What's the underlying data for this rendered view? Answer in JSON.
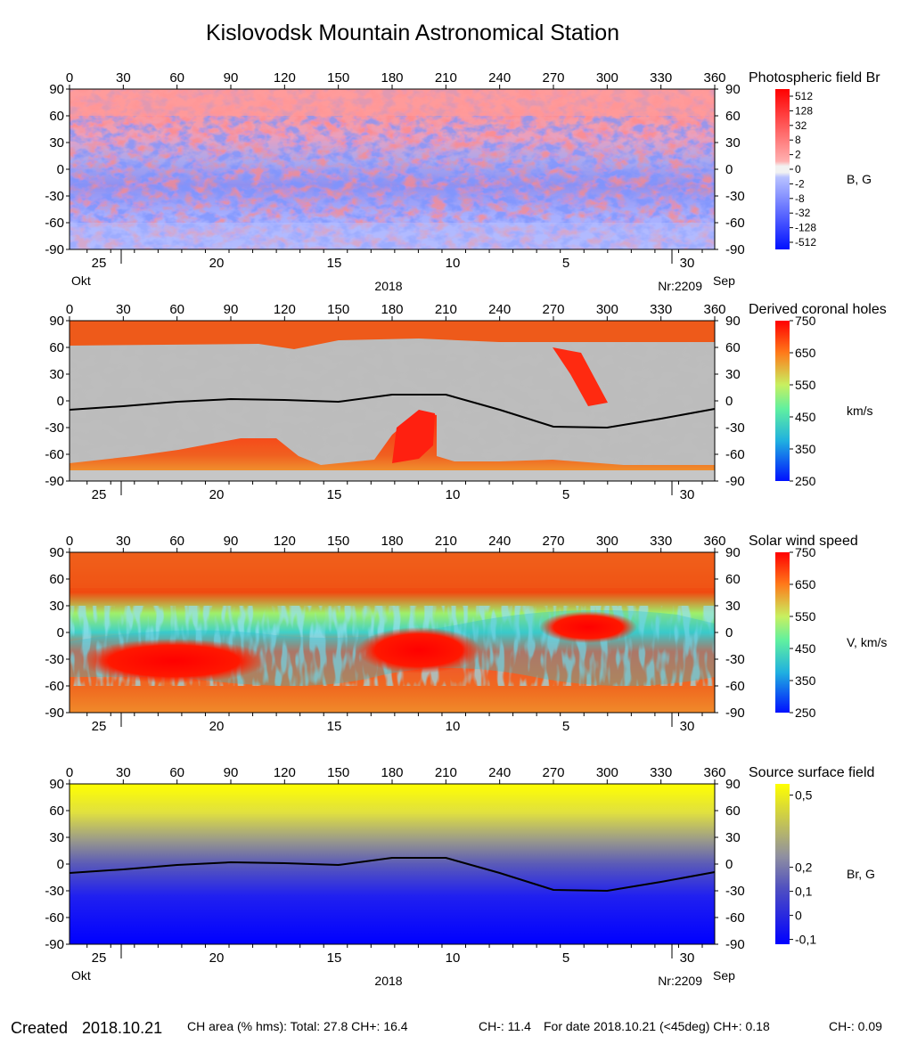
{
  "header": {
    "title": "Kislovodsk Mountain Astronomical Station"
  },
  "footer": {
    "created_label": "Created",
    "created_date": "2018.10.21",
    "ch_area": "CH area (% hms): Total: 27.8 CH+: 16.4",
    "ch_minus": "CH-: 11.4",
    "for_date": "For date 2018.10.21 (<45deg) CH+: 0.18",
    "for_date_minus": "CH-: 0.09"
  },
  "axes": {
    "longitude_ticks": [
      "0",
      "30",
      "60",
      "90",
      "120",
      "150",
      "180",
      "210",
      "240",
      "270",
      "300",
      "330",
      "360"
    ],
    "latitude_ticks": [
      "90",
      "60",
      "30",
      "0",
      "-30",
      "-60",
      "-90"
    ],
    "date_ticks": [
      "25",
      "20",
      "15",
      "10",
      "5",
      "30"
    ],
    "month_left": "Okt",
    "month_right": "Sep",
    "year": "2018",
    "rotation": "Nr:2209"
  },
  "chart_data": [
    {
      "type": "heatmap",
      "title": "Photospheric field Br",
      "colorbar_label": "B, G",
      "colorbar_ticks": [
        "512",
        "128",
        "32",
        "8",
        "2",
        "0",
        "-2",
        "-8",
        "-32",
        "-128",
        "-512"
      ],
      "x_range": [
        0,
        360
      ],
      "y_range": [
        -90,
        90
      ],
      "colors": {
        "positive": "#ff4040",
        "negative": "#4060ff",
        "neutral": "#ffffff"
      }
    },
    {
      "type": "heatmap",
      "title": "Derived coronal holes",
      "colorbar_label": "km/s",
      "colorbar_ticks": [
        "750",
        "650",
        "550",
        "450",
        "350",
        "250"
      ],
      "x_range": [
        0,
        360
      ],
      "y_range": [
        -90,
        90
      ],
      "neutral_line": {
        "x": [
          0,
          30,
          60,
          90,
          120,
          150,
          180,
          210,
          240,
          270,
          300,
          330,
          360
        ],
        "y": [
          -10,
          -6,
          -1,
          2,
          1,
          -1,
          7,
          7,
          -10,
          -29,
          -30,
          -20,
          -9
        ]
      }
    },
    {
      "type": "heatmap",
      "title": "Solar wind speed",
      "colorbar_label": "V, km/s",
      "colorbar_ticks": [
        "750",
        "650",
        "550",
        "450",
        "350",
        "250"
      ],
      "x_range": [
        0,
        360
      ],
      "y_range": [
        -90,
        90
      ]
    },
    {
      "type": "heatmap",
      "title": "Source surface field",
      "colorbar_label": "Br, G",
      "colorbar_ticks": [
        "0,5",
        "0,2",
        "0,1",
        "0",
        "-0,1"
      ],
      "x_range": [
        0,
        360
      ],
      "y_range": [
        -90,
        90
      ],
      "neutral_line": {
        "x": [
          0,
          30,
          60,
          90,
          120,
          150,
          180,
          210,
          240,
          270,
          300,
          330,
          360
        ],
        "y": [
          -10,
          -6,
          -1,
          2,
          1,
          -1,
          7,
          7,
          -10,
          -29,
          -30,
          -20,
          -9
        ]
      }
    }
  ]
}
